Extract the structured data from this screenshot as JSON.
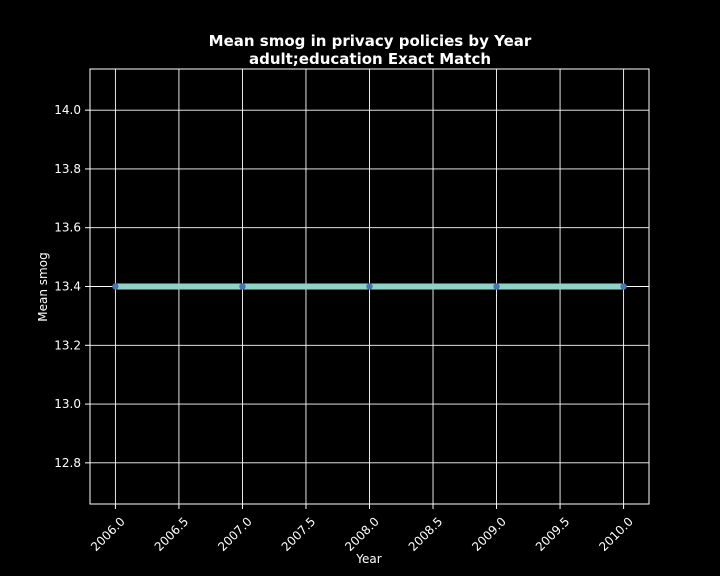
{
  "chart_data": {
    "type": "line",
    "title": "Mean smog in privacy policies by Year",
    "subtitle": "adult;education Exact Match",
    "xlabel": "Year",
    "ylabel": "Mean smog",
    "x": [
      2006,
      2007,
      2008,
      2009,
      2010
    ],
    "series": [
      {
        "values": [
          13.4,
          13.4,
          13.4,
          13.4,
          13.4
        ]
      }
    ],
    "xlim": [
      2005.8,
      2010.2
    ],
    "ylim": [
      12.66,
      14.14
    ],
    "xticks": [
      "2006.0",
      "2006.5",
      "2007.0",
      "2007.5",
      "2008.0",
      "2008.5",
      "2009.0",
      "2009.5",
      "2010.0"
    ],
    "yticks": [
      "12.8",
      "13.0",
      "13.2",
      "13.4",
      "13.6",
      "13.8",
      "14.0"
    ],
    "grid": true,
    "colors": {
      "background": "#000000",
      "line": "#8dd3c7",
      "marker": "#4c72b0",
      "text": "#ffffff"
    }
  }
}
